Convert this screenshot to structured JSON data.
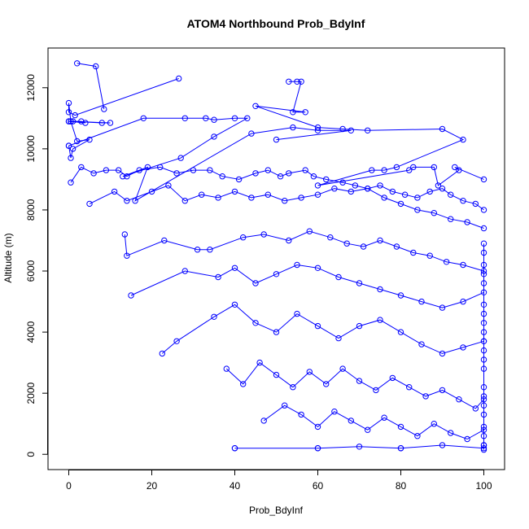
{
  "chart_data": {
    "type": "line",
    "title": "ATOM4 Northbound Prob_BdyInf",
    "xlabel": "Prob_BdyInf",
    "ylabel": "Altitude (m)",
    "xlim": [
      -5,
      105
    ],
    "ylim": [
      -500,
      13300
    ],
    "x_ticks": [
      0,
      20,
      40,
      60,
      80,
      100
    ],
    "y_ticks": [
      0,
      2000,
      4000,
      6000,
      8000,
      10000,
      12000
    ],
    "marker": "open-circle",
    "series_color": "#0000ff",
    "grid": false,
    "legend": "none",
    "series": [
      {
        "x": [
          2,
          6.5,
          8.5
        ],
        "y": [
          12800,
          12700,
          11300
        ]
      },
      {
        "x": [
          26.5,
          1.5,
          0,
          0,
          0.5,
          3,
          4,
          0
        ],
        "y": [
          12300,
          11100,
          11200,
          11500,
          10900,
          10900,
          10850,
          10900
        ]
      },
      {
        "x": [
          0,
          1,
          10,
          8,
          0.5,
          2,
          5,
          1,
          0.5,
          0
        ],
        "y": [
          10900,
          10900,
          10850,
          10850,
          10900,
          10250,
          10300,
          10000,
          9700,
          10100
        ]
      },
      {
        "x": [
          0,
          18,
          28,
          33,
          35,
          40,
          43,
          35,
          27,
          13,
          19,
          16,
          44,
          54,
          60,
          68,
          50
        ],
        "y": [
          10100,
          11000,
          11000,
          11000,
          10950,
          11000,
          11000,
          10400,
          9700,
          9100,
          9400,
          8300,
          10500,
          10700,
          10600,
          10600,
          10300
        ]
      },
      {
        "x": [
          53,
          55,
          56,
          54,
          57,
          45,
          60,
          66,
          72,
          90,
          95,
          79,
          76,
          73,
          60,
          82,
          83,
          88,
          89,
          94,
          93,
          100
        ],
        "y": [
          12200,
          12200,
          12200,
          11200,
          11200,
          11400,
          10700,
          10650,
          10600,
          10650,
          10300,
          9400,
          9300,
          9300,
          8800,
          9300,
          9400,
          9400,
          8800,
          9300,
          9400,
          9000
        ]
      },
      {
        "x": [
          0.5,
          3,
          6,
          9,
          12,
          14,
          17,
          22,
          26,
          30,
          34,
          37,
          41,
          45,
          48,
          51,
          53,
          57,
          59,
          62,
          66,
          69,
          72,
          75,
          78,
          81,
          84,
          87,
          90,
          92,
          95,
          98,
          100
        ],
        "y": [
          8900,
          9400,
          9200,
          9300,
          9300,
          9100,
          9300,
          9400,
          9200,
          9300,
          9300,
          9100,
          9000,
          9200,
          9300,
          9100,
          9200,
          9300,
          9100,
          9000,
          8900,
          8800,
          8700,
          8800,
          8600,
          8500,
          8400,
          8600,
          8700,
          8500,
          8300,
          8200,
          8000
        ]
      },
      {
        "x": [
          5,
          11,
          14,
          20,
          24,
          28,
          32,
          36,
          40,
          44,
          48,
          52,
          56,
          60,
          64,
          68,
          72,
          76,
          80,
          84,
          88,
          92,
          96,
          100
        ],
        "y": [
          8200,
          8600,
          8300,
          8600,
          8800,
          8300,
          8500,
          8400,
          8600,
          8400,
          8500,
          8300,
          8400,
          8500,
          8700,
          8600,
          8700,
          8400,
          8200,
          8000,
          7900,
          7700,
          7600,
          7400
        ]
      },
      {
        "x": [
          13.5,
          14,
          23,
          31,
          34,
          42,
          47,
          53,
          58,
          63,
          67,
          71,
          75,
          79,
          83,
          87,
          91,
          95,
          100
        ],
        "y": [
          7200,
          6500,
          7000,
          6700,
          6700,
          7100,
          7200,
          7000,
          7300,
          7100,
          6900,
          6800,
          7000,
          6800,
          6600,
          6500,
          6300,
          6200,
          6000
        ]
      },
      {
        "x": [
          15,
          28,
          36,
          40,
          45,
          50,
          55,
          60,
          65,
          70,
          75,
          80,
          85,
          90,
          95,
          100
        ],
        "y": [
          5200,
          6000,
          5800,
          6100,
          5600,
          5900,
          6200,
          6100,
          5800,
          5600,
          5400,
          5200,
          5000,
          4800,
          5000,
          5300
        ]
      },
      {
        "x": [
          22.5,
          26,
          35,
          40,
          45,
          50,
          55,
          60,
          65,
          70,
          75,
          80,
          85,
          90,
          95,
          100
        ],
        "y": [
          3300,
          3700,
          4500,
          4900,
          4300,
          4000,
          4600,
          4200,
          3800,
          4200,
          4400,
          4000,
          3600,
          3300,
          3500,
          3700
        ]
      },
      {
        "x": [
          38,
          42,
          46,
          50,
          54,
          58,
          62,
          66,
          70,
          74,
          78,
          82,
          86,
          90,
          94,
          98,
          100
        ],
        "y": [
          2800,
          2300,
          3000,
          2600,
          2200,
          2700,
          2300,
          2800,
          2400,
          2100,
          2500,
          2200,
          1900,
          2100,
          1800,
          1500,
          1800
        ]
      },
      {
        "x": [
          47,
          52,
          56,
          60,
          64,
          68,
          72,
          76,
          80,
          84,
          88,
          92,
          96,
          100
        ],
        "y": [
          1100,
          1600,
          1300,
          900,
          1400,
          1100,
          800,
          1200,
          900,
          600,
          1000,
          700,
          500,
          800
        ]
      },
      {
        "x": [
          40,
          40,
          60,
          60,
          70,
          80,
          80,
          90,
          100,
          100,
          100
        ],
        "y": [
          200,
          200,
          200,
          200,
          250,
          200,
          200,
          300,
          200,
          300,
          150
        ]
      },
      {
        "x": [
          100,
          100,
          100,
          100,
          100,
          100,
          100,
          100,
          100,
          100,
          100,
          100,
          100,
          100,
          100,
          100,
          100,
          100,
          100,
          100
        ],
        "y": [
          6900,
          6600,
          6200,
          5900,
          5600,
          4900,
          4600,
          4300,
          4000,
          3700,
          3400,
          3100,
          2800,
          2200,
          1900,
          1600,
          1300,
          900,
          600,
          300
        ]
      }
    ]
  }
}
